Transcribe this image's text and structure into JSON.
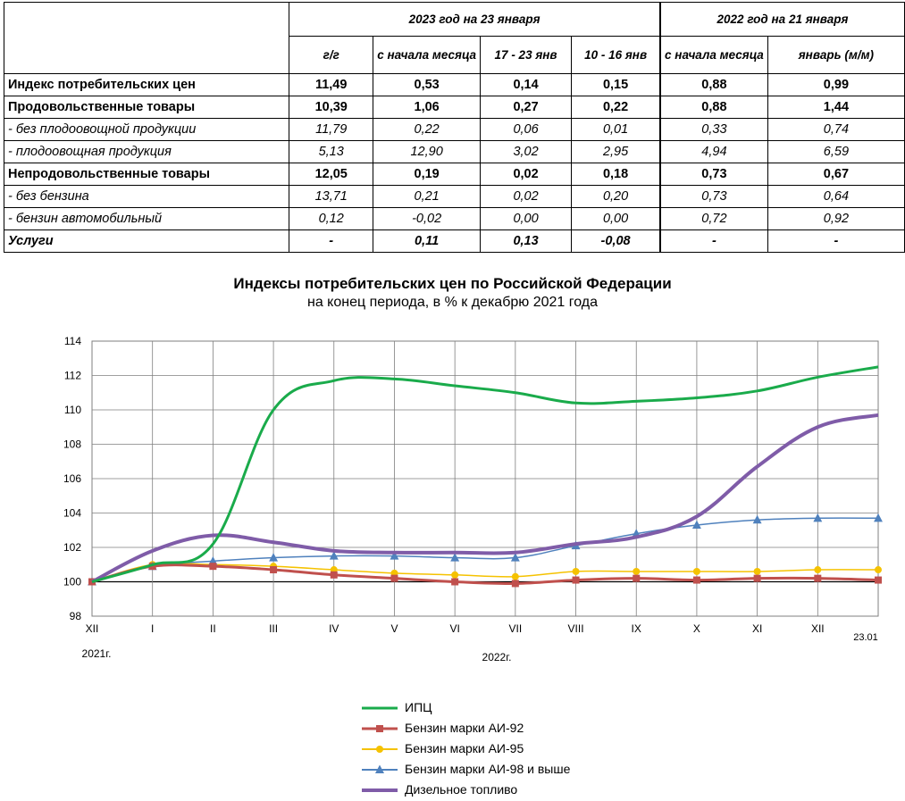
{
  "table": {
    "group_2023": "2023 год на 23 января",
    "group_2022": "2022 год на 21 января",
    "columns": [
      "г/г",
      "с начала месяца",
      "17 - 23 янв",
      "10 - 16 янв",
      "с начала месяца",
      "январь (м/м)"
    ],
    "rows": [
      {
        "label": "Индекс потребительских цен",
        "style": "b",
        "values": [
          "11,49",
          "0,53",
          "0,14",
          "0,15",
          "0,88",
          "0,99"
        ]
      },
      {
        "label": "Продовольственные товары",
        "style": "b",
        "values": [
          "10,39",
          "1,06",
          "0,27",
          "0,22",
          "0,88",
          "1,44"
        ]
      },
      {
        "label": "- без плодоовощной продукции",
        "style": "i",
        "values": [
          "11,79",
          "0,22",
          "0,06",
          "0,01",
          "0,33",
          "0,74"
        ]
      },
      {
        "label": "- плодоовощная продукция",
        "style": "i",
        "values": [
          "5,13",
          "12,90",
          "3,02",
          "2,95",
          "4,94",
          "6,59"
        ]
      },
      {
        "label": "Непродовольственные товары",
        "style": "b",
        "values": [
          "12,05",
          "0,19",
          "0,02",
          "0,18",
          "0,73",
          "0,67"
        ]
      },
      {
        "label": "- без бензина",
        "style": "i",
        "values": [
          "13,71",
          "0,21",
          "0,02",
          "0,20",
          "0,73",
          "0,64"
        ]
      },
      {
        "label": "- бензин автомобильный",
        "style": "i",
        "values": [
          "0,12",
          "-0,02",
          "0,00",
          "0,00",
          "0,72",
          "0,92"
        ]
      },
      {
        "label": "Услуги",
        "style": "bi",
        "values": [
          "-",
          "0,11",
          "0,13",
          "-0,08",
          "-",
          "-"
        ]
      }
    ]
  },
  "chart_data": {
    "type": "line",
    "title": "Индексы потребительских цен по Российской Федерации",
    "subtitle": "на конец периода, в % к декабрю 2021 года",
    "categories": [
      "XII",
      "I",
      "II",
      "III",
      "IV",
      "V",
      "VI",
      "VII",
      "VIII",
      "IX",
      "X",
      "XI",
      "XII",
      "23.01"
    ],
    "year_labels": [
      "2021г.",
      "2022г."
    ],
    "ylim": [
      98,
      114
    ],
    "yticks": [
      98,
      100,
      102,
      104,
      106,
      108,
      110,
      112,
      114
    ],
    "grid": true,
    "legend_position": "bottom",
    "series": [
      {
        "name": "ИПЦ",
        "color": "#1aab4b",
        "marker": "none",
        "width": 3,
        "values": [
          100,
          100.99,
          102.2,
          110.0,
          111.7,
          111.8,
          111.4,
          111.0,
          110.4,
          110.5,
          110.7,
          111.1,
          111.9,
          112.5
        ]
      },
      {
        "name": "Бензин марки АИ-92",
        "color": "#c0504d",
        "marker": "square",
        "width": 3,
        "values": [
          100,
          100.9,
          100.9,
          100.7,
          100.4,
          100.2,
          100.0,
          99.9,
          100.1,
          100.2,
          100.1,
          100.2,
          100.2,
          100.1
        ]
      },
      {
        "name": "Бензин марки АИ-95",
        "color": "#f5c200",
        "marker": "circle",
        "width": 1.5,
        "values": [
          100,
          101.0,
          101.0,
          100.9,
          100.7,
          100.5,
          100.4,
          100.3,
          100.6,
          100.6,
          100.6,
          100.6,
          100.7,
          100.7
        ]
      },
      {
        "name": "Бензин марки АИ-98 и выше",
        "color": "#4f81bd",
        "marker": "triangle",
        "width": 1.5,
        "values": [
          100,
          100.9,
          101.2,
          101.4,
          101.5,
          101.5,
          101.4,
          101.4,
          102.1,
          102.8,
          103.3,
          103.6,
          103.7,
          103.7
        ]
      },
      {
        "name": "Дизельное топливо",
        "color": "#7f5ca8",
        "marker": "none",
        "width": 4,
        "values": [
          100,
          101.8,
          102.7,
          102.3,
          101.8,
          101.7,
          101.7,
          101.7,
          102.2,
          102.6,
          103.8,
          106.7,
          109.0,
          109.7
        ]
      }
    ]
  }
}
